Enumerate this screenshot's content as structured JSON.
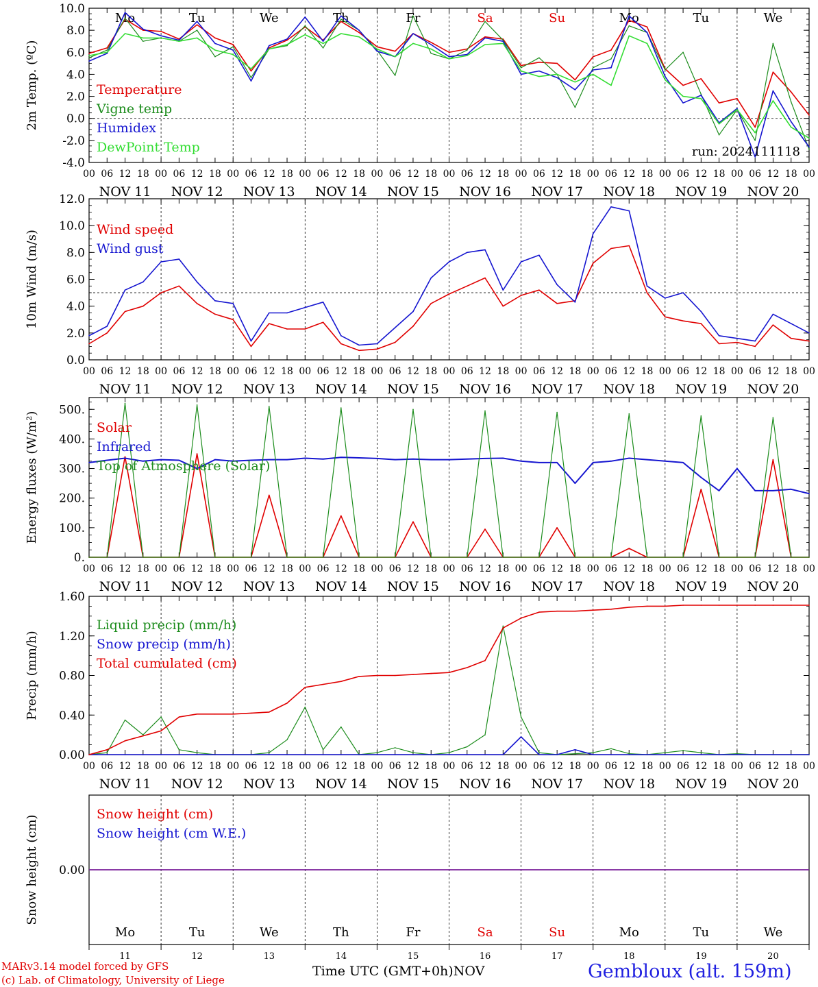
{
  "colors": {
    "red": "#e00000",
    "green": "#1c8c1c",
    "blue": "#1515d0",
    "lightgreen": "#33dd33",
    "purple": "#7a1f9a",
    "axis": "#000000",
    "weekend": "#e00000"
  },
  "footer": {
    "credit_line1": "MARv3.14 model forced by GFS",
    "credit_line2": "(c) Lab. of Climatology, University of Liege",
    "x_title": "Time UTC (GMT+0h)",
    "month": "NOV",
    "station": "Gembloux (alt. 159m)"
  },
  "days": {
    "weekdays": [
      "Mo",
      "Tu",
      "We",
      "Th",
      "Fr",
      "Sa",
      "Su",
      "Mo",
      "Tu",
      "We"
    ],
    "weekend_flags": [
      false,
      false,
      false,
      false,
      false,
      true,
      true,
      false,
      false,
      false
    ],
    "date_labels": [
      "NOV 11",
      "NOV 12",
      "NOV 13",
      "NOV 14",
      "NOV 15",
      "NOV 16",
      "NOV 17",
      "NOV 18",
      "NOV 19",
      "NOV 20"
    ],
    "day_numbers": [
      "11",
      "12",
      "13",
      "14",
      "15",
      "16",
      "17",
      "18",
      "19",
      "20"
    ],
    "hour_ticks": [
      "00",
      "06",
      "12",
      "18"
    ]
  },
  "chart_data": [
    {
      "type": "line",
      "ylabel": "2m Temp. (ºC)",
      "ylim": [
        -4,
        10
      ],
      "yticks": [
        "10.0",
        "8.0",
        "6.0",
        "4.0",
        "2.0",
        "0.0",
        "-2.0",
        "-4.0"
      ],
      "ytick_values": [
        10,
        8,
        6,
        4,
        2,
        0,
        -2,
        -4
      ],
      "ref_line": 0,
      "show_weekdays": true,
      "annotation": "run: 2024111118",
      "x_hours": [
        0,
        6,
        12,
        18,
        24,
        30,
        36,
        42,
        48,
        54,
        60,
        66,
        72,
        78,
        84,
        90,
        96,
        102,
        108,
        114,
        120,
        126,
        132,
        138,
        144,
        150,
        156,
        162,
        168,
        174,
        180,
        186,
        192,
        198,
        204,
        210,
        216,
        222,
        228,
        234,
        240
      ],
      "series": [
        {
          "name": "Temperature",
          "color": "red",
          "values": [
            5.9,
            6.4,
            9.0,
            8.0,
            7.9,
            7.2,
            8.5,
            7.3,
            6.7,
            4.3,
            6.4,
            7.1,
            8.3,
            7.1,
            8.8,
            7.8,
            6.5,
            6.1,
            7.7,
            6.9,
            6.0,
            6.3,
            7.4,
            7.2,
            4.8,
            5.1,
            5.0,
            3.5,
            5.6,
            6.2,
            8.9,
            8.3,
            4.5,
            3.0,
            3.6,
            1.4,
            1.8,
            -0.8,
            4.2,
            2.4,
            0.3
          ]
        },
        {
          "name": "Vigne temp",
          "color": "green",
          "values": [
            5.5,
            6.2,
            9.1,
            7.0,
            7.3,
            7.0,
            8.0,
            5.6,
            6.5,
            3.7,
            6.3,
            6.6,
            8.4,
            6.4,
            9.0,
            8.0,
            6.2,
            3.9,
            9.3,
            5.9,
            5.4,
            6.2,
            8.8,
            7.1,
            4.6,
            5.5,
            4.0,
            1.0,
            4.6,
            5.4,
            8.4,
            7.8,
            4.4,
            6.0,
            2.2,
            -1.5,
            0.8,
            -2.0,
            6.8,
            1.5,
            -2.8
          ]
        },
        {
          "name": "Humidex",
          "color": "blue",
          "values": [
            5.2,
            5.9,
            9.6,
            8.1,
            7.5,
            7.1,
            8.8,
            6.8,
            6.2,
            3.4,
            6.6,
            7.2,
            9.2,
            7.0,
            9.3,
            8.0,
            6.1,
            5.6,
            7.7,
            6.7,
            5.6,
            5.8,
            7.3,
            7.0,
            4.0,
            4.3,
            3.7,
            2.6,
            4.4,
            4.6,
            9.3,
            7.8,
            3.8,
            1.4,
            2.1,
            -0.4,
            0.9,
            -3.5,
            2.5,
            -0.3,
            -2.6
          ]
        },
        {
          "name": "DewPoint Temp",
          "color": "lightgreen",
          "values": [
            5.7,
            6.0,
            7.7,
            7.3,
            7.3,
            7.0,
            7.3,
            6.2,
            5.8,
            4.5,
            6.3,
            6.7,
            7.6,
            6.8,
            7.7,
            7.4,
            6.3,
            5.6,
            6.8,
            6.3,
            5.4,
            5.7,
            6.7,
            6.8,
            4.3,
            3.8,
            4.0,
            3.3,
            4.0,
            3.0,
            7.5,
            6.8,
            3.5,
            2.0,
            1.8,
            -0.5,
            0.8,
            -1.3,
            1.6,
            -0.8,
            -1.8
          ]
        }
      ]
    },
    {
      "type": "line",
      "ylabel": "10m Wind (m/s)",
      "ylim": [
        0,
        12
      ],
      "yticks": [
        "12.0",
        "10.0",
        "8.0",
        "6.0",
        "4.0",
        "2.0",
        "0.0"
      ],
      "ytick_values": [
        12,
        10,
        8,
        6,
        4,
        2,
        0
      ],
      "ref_line": 5,
      "x_hours": [
        0,
        6,
        12,
        18,
        24,
        30,
        36,
        42,
        48,
        54,
        60,
        66,
        72,
        78,
        84,
        90,
        96,
        102,
        108,
        114,
        120,
        126,
        132,
        138,
        144,
        150,
        156,
        162,
        168,
        174,
        180,
        186,
        192,
        198,
        204,
        210,
        216,
        222,
        228,
        234,
        240
      ],
      "series": [
        {
          "name": "Wind speed",
          "color": "red",
          "values": [
            1.2,
            2.0,
            3.6,
            4.0,
            5.0,
            5.5,
            4.2,
            3.4,
            3.0,
            1.0,
            2.7,
            2.3,
            2.3,
            2.8,
            1.2,
            0.7,
            0.8,
            1.3,
            2.5,
            4.2,
            4.9,
            5.5,
            6.1,
            4.0,
            4.8,
            5.2,
            4.2,
            4.4,
            7.2,
            8.3,
            8.5,
            5.0,
            3.2,
            2.9,
            2.7,
            1.2,
            1.3,
            1.0,
            2.6,
            1.6,
            1.4
          ]
        },
        {
          "name": "Wind gust",
          "color": "blue",
          "values": [
            1.8,
            2.5,
            5.2,
            5.8,
            7.3,
            7.5,
            5.8,
            4.4,
            4.2,
            1.4,
            3.5,
            3.5,
            3.9,
            4.3,
            1.8,
            1.1,
            1.2,
            2.4,
            3.6,
            6.1,
            7.3,
            8.0,
            8.2,
            5.2,
            7.3,
            7.8,
            5.6,
            4.3,
            9.4,
            11.4,
            11.1,
            5.5,
            4.6,
            5.0,
            3.6,
            1.8,
            1.6,
            1.4,
            3.4,
            2.7,
            2.0
          ]
        }
      ]
    },
    {
      "type": "line",
      "ylabel": "Energy fluxes (W/m²)",
      "ylim": [
        0,
        540
      ],
      "yticks": [
        "500.",
        "400.",
        "300.",
        "200.",
        "100.",
        "0."
      ],
      "ytick_values": [
        500,
        400,
        300,
        200,
        100,
        0
      ],
      "x_hours": [
        0,
        6,
        12,
        18,
        24,
        30,
        36,
        42,
        48,
        54,
        60,
        66,
        72,
        78,
        84,
        90,
        96,
        102,
        108,
        114,
        120,
        126,
        132,
        138,
        144,
        150,
        156,
        162,
        168,
        174,
        180,
        186,
        192,
        198,
        204,
        210,
        216,
        222,
        228,
        234,
        240
      ],
      "series": [
        {
          "name": "Solar",
          "color": "red",
          "values": [
            0,
            0,
            340,
            0,
            0,
            0,
            350,
            0,
            0,
            0,
            210,
            0,
            0,
            0,
            140,
            0,
            0,
            0,
            120,
            0,
            0,
            0,
            95,
            0,
            0,
            0,
            100,
            0,
            0,
            0,
            30,
            0,
            0,
            0,
            230,
            0,
            0,
            0,
            330,
            0,
            0
          ]
        },
        {
          "name": "Infrared",
          "color": "blue",
          "values": [
            320,
            328,
            335,
            325,
            330,
            328,
            300,
            330,
            325,
            328,
            330,
            330,
            335,
            332,
            338,
            336,
            334,
            330,
            332,
            330,
            330,
            332,
            334,
            335,
            325,
            320,
            320,
            250,
            320,
            325,
            335,
            330,
            325,
            320,
            270,
            225,
            300,
            225,
            225,
            230,
            215
          ]
        },
        {
          "name": "Top of Atmosphere (Solar)",
          "color": "green",
          "values": [
            0,
            0,
            520,
            0,
            0,
            0,
            515,
            0,
            0,
            0,
            510,
            0,
            0,
            0,
            505,
            0,
            0,
            0,
            500,
            0,
            0,
            0,
            495,
            0,
            0,
            0,
            490,
            0,
            0,
            0,
            485,
            0,
            0,
            0,
            478,
            0,
            0,
            0,
            472,
            0,
            0
          ]
        }
      ]
    },
    {
      "type": "line",
      "ylabel": "Precip (mm/h)",
      "ylim": [
        0,
        1.6
      ],
      "yticks": [
        "1.60",
        "1.20",
        "0.80",
        "0.40",
        "0.00"
      ],
      "ytick_values": [
        1.6,
        1.2,
        0.8,
        0.4,
        0.0
      ],
      "x_hours": [
        0,
        6,
        12,
        18,
        24,
        30,
        36,
        42,
        48,
        54,
        60,
        66,
        72,
        78,
        84,
        90,
        96,
        102,
        108,
        114,
        120,
        126,
        132,
        138,
        144,
        150,
        156,
        162,
        168,
        174,
        180,
        186,
        192,
        198,
        204,
        210,
        216,
        222,
        228,
        234,
        240
      ],
      "series": [
        {
          "name": "Liquid precip (mm/h)",
          "color": "green",
          "values": [
            0,
            0.02,
            0.35,
            0.2,
            0.38,
            0.05,
            0.02,
            0,
            0,
            0,
            0.02,
            0.15,
            0.48,
            0.05,
            0.28,
            0,
            0.02,
            0.07,
            0.02,
            0,
            0.02,
            0.08,
            0.2,
            1.3,
            0.38,
            0.02,
            0,
            0.01,
            0.02,
            0.06,
            0.01,
            0,
            0.02,
            0.04,
            0.02,
            0,
            0.01,
            0,
            0,
            0,
            0
          ]
        },
        {
          "name": "Snow precip (mm/h)",
          "color": "blue",
          "values": [
            0,
            0,
            0,
            0,
            0,
            0,
            0,
            0,
            0,
            0,
            0,
            0,
            0,
            0,
            0,
            0,
            0,
            0,
            0,
            0,
            0,
            0,
            0,
            0,
            0.18,
            0,
            0,
            0.05,
            0,
            0,
            0,
            0,
            0,
            0,
            0,
            0,
            0,
            0,
            0,
            0,
            0
          ]
        },
        {
          "name": "Total cumulated (cm)",
          "color": "red",
          "values": [
            0,
            0.05,
            0.14,
            0.19,
            0.24,
            0.38,
            0.41,
            0.41,
            0.41,
            0.42,
            0.43,
            0.52,
            0.68,
            0.71,
            0.74,
            0.79,
            0.8,
            0.8,
            0.81,
            0.82,
            0.83,
            0.88,
            0.95,
            1.28,
            1.38,
            1.44,
            1.45,
            1.45,
            1.46,
            1.47,
            1.49,
            1.5,
            1.5,
            1.51,
            1.51,
            1.51,
            1.51,
            1.51,
            1.51,
            1.51,
            1.51
          ]
        }
      ]
    },
    {
      "type": "line",
      "ylabel": "Snow height (cm)",
      "ylim": [
        -1,
        1
      ],
      "yticks": [
        "0.00"
      ],
      "ytick_values": [
        0
      ],
      "x_hours": [
        0,
        240
      ],
      "show_weekdays_bottom": true,
      "series": [
        {
          "name": "Snow height (cm)",
          "color": "red",
          "values": [
            0,
            0
          ]
        },
        {
          "name": "Snow height (cm W.E.)",
          "color": "blue",
          "values": [
            0,
            0
          ]
        }
      ]
    }
  ]
}
